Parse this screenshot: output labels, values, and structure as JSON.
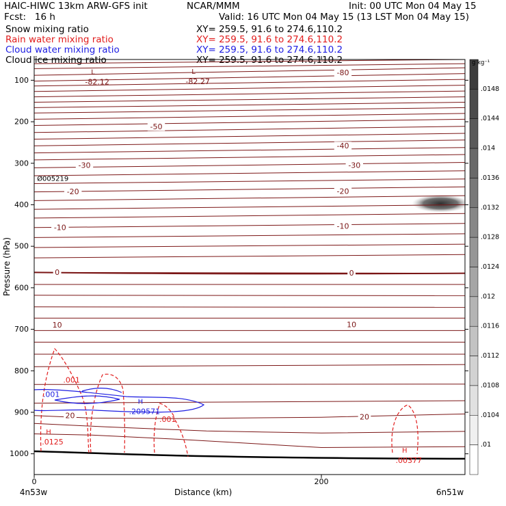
{
  "header": {
    "line1_left": "HAIC-HIWC 13km ARW-GFS init",
    "line1_mid": "NCAR/MMM",
    "line1_right": "Init: 00 UTC Mon 04 May 15",
    "line2_left": "Fcst:   16 h",
    "line2_right": "Valid: 16 UTC Mon 04 May 15 (13 LST Mon 04 May 15)"
  },
  "fields": [
    {
      "name": "Snow mixing ratio",
      "xy": "XY= 259.5, 91.6 to 274.6,110.2",
      "color": "#000000"
    },
    {
      "name": "Rain water mixing ratio",
      "xy": "XY= 259.5, 91.6 to 274.6,110.2",
      "color": "#e11c1c"
    },
    {
      "name": "Cloud water mixing ratio",
      "xy": "XY= 259.5, 91.6 to 274.6,110.2",
      "color": "#1c1ce1"
    },
    {
      "name": "Cloud ice mixing ratio",
      "xy": "XY= 259.5, 91.6 to 274.6,110.2",
      "color": "#000000"
    }
  ],
  "colorbar": {
    "unit": "g kg⁻¹",
    "labels": [
      ".0148",
      ".0144",
      ".014",
      ".0136",
      ".0132",
      ".0128",
      ".0124",
      ".012",
      ".0116",
      ".0112",
      ".0108",
      ".0104",
      ".01"
    ]
  },
  "chart_data": {
    "type": "contour",
    "xlabel": "Distance (km)",
    "ylabel": "Pressure (hPa)",
    "x_ticks": [
      0,
      200
    ],
    "y_ticks": [
      100,
      200,
      300,
      400,
      500,
      600,
      700,
      800,
      900,
      1000
    ],
    "x_endpoint_labels": [
      "4n53w",
      "6n51w"
    ],
    "xlim": [
      0,
      300
    ],
    "ylim": [
      1050,
      50
    ],
    "temperature_contour_color": "#7a1515",
    "temperature_labels": [
      {
        "text": "-80",
        "x": 215,
        "p": 82
      },
      {
        "text": "-50",
        "x": 85,
        "p": 212
      },
      {
        "text": "-40",
        "x": 215,
        "p": 258
      },
      {
        "text": "-30",
        "x": 35,
        "p": 305
      },
      {
        "text": "-30",
        "x": 223,
        "p": 305
      },
      {
        "text": "-20",
        "x": 27,
        "p": 369
      },
      {
        "text": "-20",
        "x": 215,
        "p": 368
      },
      {
        "text": "-10",
        "x": 18,
        "p": 455
      },
      {
        "text": "-10",
        "x": 215,
        "p": 452
      },
      {
        "text": "0",
        "x": 16,
        "p": 563
      },
      {
        "text": "0",
        "x": 221,
        "p": 565
      },
      {
        "text": "10",
        "x": 16,
        "p": 690
      },
      {
        "text": "10",
        "x": 221,
        "p": 689
      },
      {
        "text": "20",
        "x": 25,
        "p": 908
      },
      {
        "text": "20",
        "x": 230,
        "p": 912
      }
    ],
    "extrema": [
      {
        "kind": "L",
        "value": "-82.12",
        "x": 41,
        "p": 93,
        "color": "#7a1515"
      },
      {
        "kind": "L",
        "value": "-82.27",
        "x": 111,
        "p": 92,
        "color": "#7a1515"
      },
      {
        "kind": "H",
        "value": ".209571",
        "x": 74,
        "p": 887,
        "color": "#1c1ce1"
      },
      {
        "kind": "H",
        "value": ".0125",
        "x": 10,
        "p": 960,
        "color": "#e11c1c"
      },
      {
        "kind": "H",
        "value": ".00377",
        "x": 258,
        "p": 1005,
        "color": "#e11c1c"
      }
    ],
    "rain_labels": [
      {
        "text": ".001",
        "x": 26,
        "p": 823
      },
      {
        "text": ".001",
        "x": 93,
        "p": 917
      }
    ],
    "cloud_water_labels": [
      {
        "text": ".001",
        "x": 12,
        "p": 857
      }
    ],
    "point_label": {
      "text": "005219",
      "x": 2,
      "p": 338
    },
    "ice_patch": {
      "x": 283,
      "p": 397
    }
  }
}
